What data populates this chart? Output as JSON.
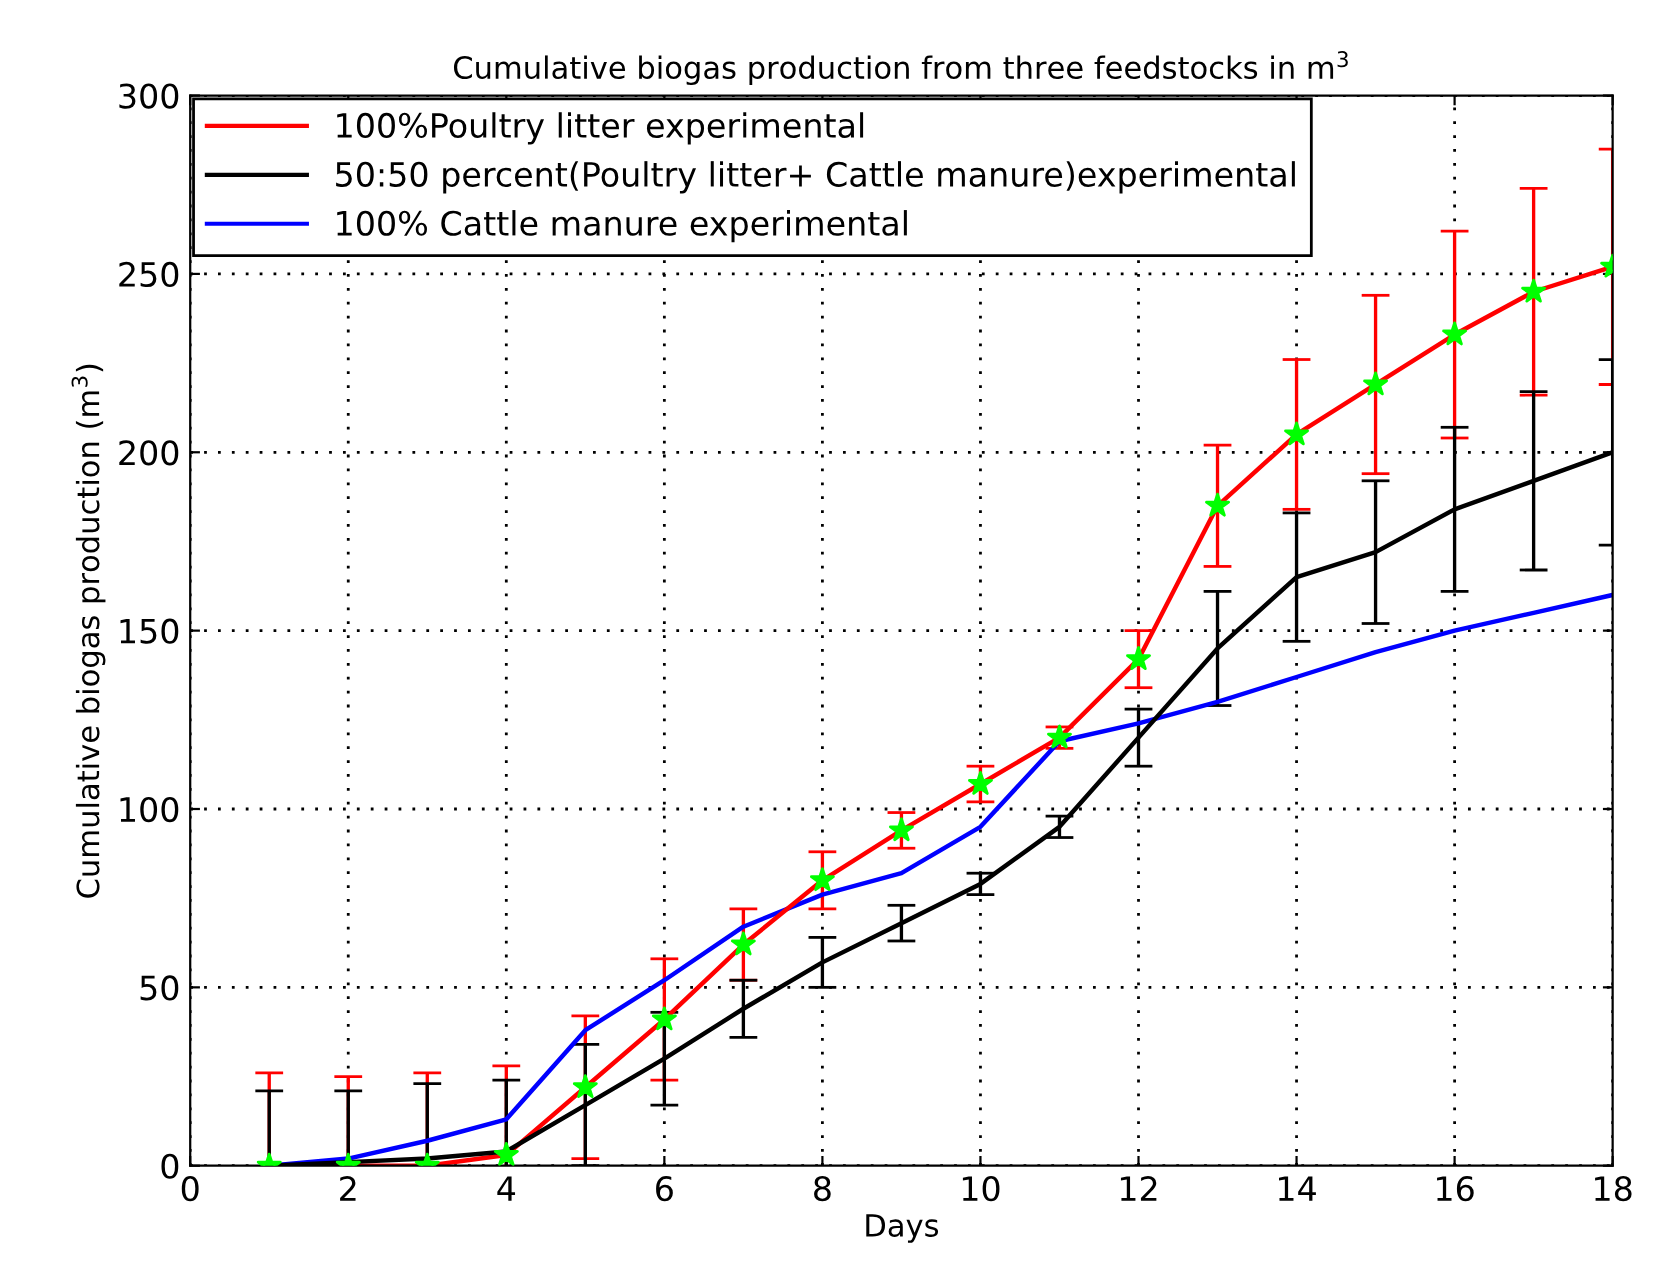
{
  "chart_data": {
    "type": "line",
    "title": "Cumulative biogas production from three feedstocks in m$^{3}$",
    "xlabel": "Days",
    "ylabel": "Cumulative biogas production (m$^{3}$)",
    "x": [
      1,
      2,
      3,
      4,
      5,
      6,
      7,
      8,
      9,
      10,
      11,
      12,
      13,
      14,
      15,
      16,
      17,
      18
    ],
    "xlim": [
      0,
      18
    ],
    "xticks": [
      0,
      2,
      4,
      6,
      8,
      10,
      12,
      14,
      16,
      18
    ],
    "ylim": [
      0,
      300
    ],
    "yticks": [
      0,
      50,
      100,
      150,
      200,
      250,
      300
    ],
    "grid": true,
    "legend": "top left",
    "series": [
      {
        "name": "100%Poultry litter experimental",
        "color": "#ff0000",
        "values": [
          0,
          0,
          0,
          3,
          22,
          41,
          62,
          80,
          94,
          107,
          120,
          142,
          185,
          205,
          219,
          233,
          245,
          252
        ],
        "errors": [
          26,
          25,
          26,
          25,
          20,
          17,
          10,
          8,
          5,
          5,
          3,
          8,
          17,
          21,
          25,
          29,
          29,
          33
        ]
      },
      {
        "name": "50:50 percent(Poultry litter+ Cattle manure)experimental",
        "color": "#000000",
        "values": [
          0,
          1,
          2,
          4,
          17,
          30,
          44,
          57,
          68,
          79,
          95,
          120,
          145,
          165,
          172,
          184,
          192,
          200
        ],
        "errors": [
          21,
          20,
          21,
          20,
          17,
          13,
          8,
          7,
          5,
          3,
          3,
          8,
          16,
          18,
          20,
          23,
          25,
          26
        ]
      },
      {
        "name": "100% Cattle manure experimental",
        "color": "#0000ff",
        "values": [
          0,
          2,
          7,
          13,
          38,
          52,
          67,
          76,
          82,
          95,
          119,
          124,
          130,
          137,
          144,
          150,
          155,
          160
        ]
      },
      {
        "type": "scatter",
        "color": "#00ff00",
        "marker": "star",
        "values": [
          0,
          0,
          0,
          3,
          22,
          41,
          62,
          80,
          94,
          107,
          120,
          142,
          185,
          205,
          219,
          233,
          245,
          252
        ]
      }
    ]
  }
}
